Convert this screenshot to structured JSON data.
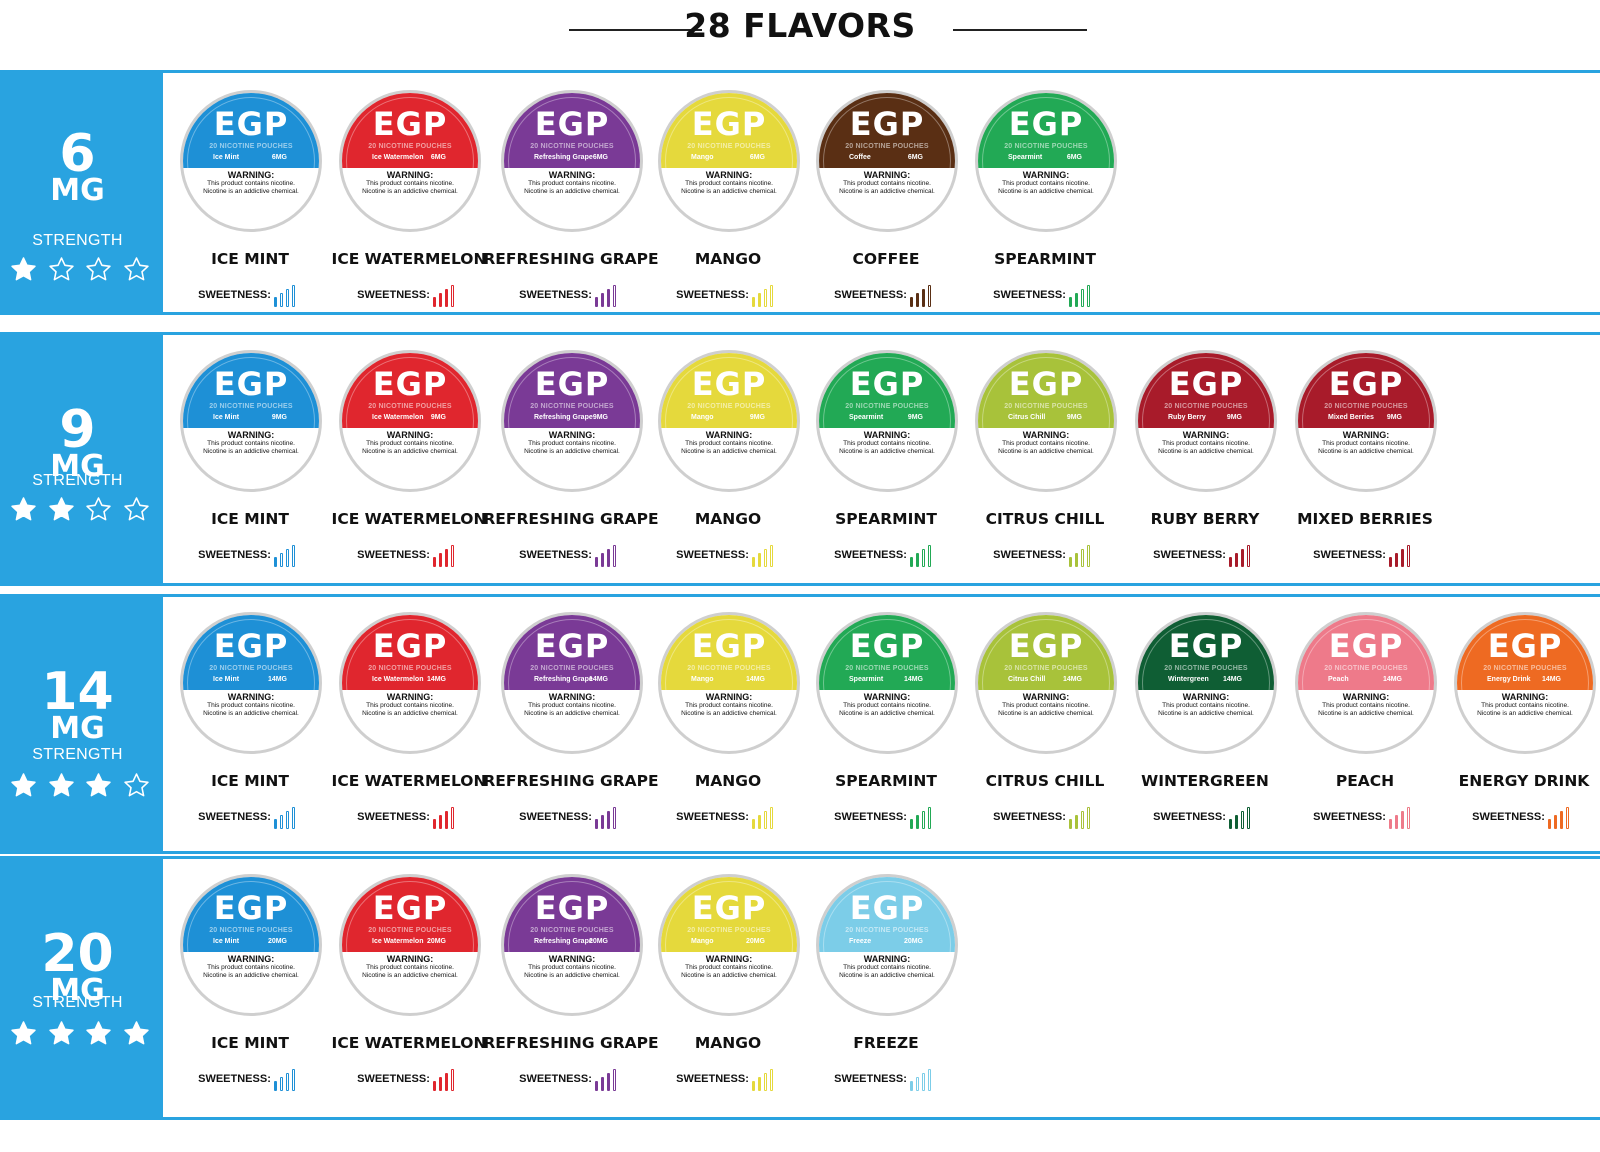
{
  "header": {
    "title": "28 FLAVORS"
  },
  "brand": "EGP",
  "tin_subtitle": "20 NICOTINE POUCHES",
  "warning": {
    "title": "WARNING:",
    "text": "This product contains nicotine. Nicotine is an addictive chemical."
  },
  "sweetness_label": "SWEETNESS:",
  "strength_label": "STRENGTH",
  "colors": {
    "accent": "#29a3e0",
    "ice_mint": "#1e90d6",
    "ice_watermelon": "#e0262e",
    "refreshing_grape": "#7a3a96",
    "mango": "#e5d93c",
    "coffee": "#5a2f14",
    "spearmint": "#22a955",
    "citrus_chill": "#a8c23a",
    "ruby_berry": "#a81b2a",
    "mixed_berries": "#a81b2a",
    "wintergreen": "#0f5e34",
    "peach": "#ee7a8a",
    "energy_drink": "#ee6a22",
    "freeze": "#7ccde8"
  },
  "tiers": [
    {
      "number": "6",
      "unit": "MG",
      "stars": 1,
      "products": [
        {
          "name": "ICE MINT",
          "tin_label": "Ice Mint",
          "mg": "6MG",
          "color_key": "ice_mint",
          "sweetness": 1
        },
        {
          "name": "ICE WATERMELON",
          "tin_label": "Ice Watermelon",
          "mg": "6MG",
          "color_key": "ice_watermelon",
          "sweetness": 3
        },
        {
          "name": "REFRESHING GRAPE",
          "tin_label": "Refreshing Grape",
          "mg": "6MG",
          "color_key": "refreshing_grape",
          "sweetness": 3
        },
        {
          "name": "MANGO",
          "tin_label": "Mango",
          "mg": "6MG",
          "color_key": "mango",
          "sweetness": 2
        },
        {
          "name": "COFFEE",
          "tin_label": "Coffee",
          "mg": "6MG",
          "color_key": "coffee",
          "sweetness": 3
        },
        {
          "name": "SPEARMINT",
          "tin_label": "Spearmint",
          "mg": "6MG",
          "color_key": "spearmint",
          "sweetness": 2
        }
      ]
    },
    {
      "number": "9",
      "unit": "MG",
      "stars": 2,
      "products": [
        {
          "name": "ICE MINT",
          "tin_label": "Ice Mint",
          "mg": "9MG",
          "color_key": "ice_mint",
          "sweetness": 1
        },
        {
          "name": "ICE WATERMELON",
          "tin_label": "Ice Watermelon",
          "mg": "9MG",
          "color_key": "ice_watermelon",
          "sweetness": 3
        },
        {
          "name": "REFRESHING GRAPE",
          "tin_label": "Refreshing Grape",
          "mg": "9MG",
          "color_key": "refreshing_grape",
          "sweetness": 3
        },
        {
          "name": "MANGO",
          "tin_label": "Mango",
          "mg": "9MG",
          "color_key": "mango",
          "sweetness": 2
        },
        {
          "name": "SPEARMINT",
          "tin_label": "Spearmint",
          "mg": "9MG",
          "color_key": "spearmint",
          "sweetness": 2
        },
        {
          "name": "CITRUS CHILL",
          "tin_label": "Citrus Chill",
          "mg": "9MG",
          "color_key": "citrus_chill",
          "sweetness": 2
        },
        {
          "name": "RUBY BERRY",
          "tin_label": "Ruby Berry",
          "mg": "9MG",
          "color_key": "ruby_berry",
          "sweetness": 3
        },
        {
          "name": "MIXED BERRIES",
          "tin_label": "Mixed Berries",
          "mg": "9MG",
          "color_key": "mixed_berries",
          "sweetness": 3
        }
      ]
    },
    {
      "number": "14",
      "unit": "MG",
      "stars": 3,
      "products": [
        {
          "name": "ICE MINT",
          "tin_label": "Ice Mint",
          "mg": "14MG",
          "color_key": "ice_mint",
          "sweetness": 1
        },
        {
          "name": "ICE WATERMELON",
          "tin_label": "Ice Watermelon",
          "mg": "14MG",
          "color_key": "ice_watermelon",
          "sweetness": 3
        },
        {
          "name": "REFRESHING GRAPE",
          "tin_label": "Refreshing Grape",
          "mg": "14MG",
          "color_key": "refreshing_grape",
          "sweetness": 3
        },
        {
          "name": "MANGO",
          "tin_label": "Mango",
          "mg": "14MG",
          "color_key": "mango",
          "sweetness": 2
        },
        {
          "name": "SPEARMINT",
          "tin_label": "Spearmint",
          "mg": "14MG",
          "color_key": "spearmint",
          "sweetness": 2
        },
        {
          "name": "CITRUS CHILL",
          "tin_label": "Citrus Chill",
          "mg": "14MG",
          "color_key": "citrus_chill",
          "sweetness": 2
        },
        {
          "name": "WINTERGREEN",
          "tin_label": "Wintergreen",
          "mg": "14MG",
          "color_key": "wintergreen",
          "sweetness": 2
        },
        {
          "name": "PEACH",
          "tin_label": "Peach",
          "mg": "14MG",
          "color_key": "peach",
          "sweetness": 3
        },
        {
          "name": "ENERGY DRINK",
          "tin_label": "Energy Drink",
          "mg": "14MG",
          "color_key": "energy_drink",
          "sweetness": 3
        }
      ]
    },
    {
      "number": "20",
      "unit": "MG",
      "stars": 4,
      "products": [
        {
          "name": "ICE MINT",
          "tin_label": "Ice Mint",
          "mg": "20MG",
          "color_key": "ice_mint",
          "sweetness": 1
        },
        {
          "name": "ICE WATERMELON",
          "tin_label": "Ice Watermelon",
          "mg": "20MG",
          "color_key": "ice_watermelon",
          "sweetness": 3
        },
        {
          "name": "REFRESHING GRAPE",
          "tin_label": "Refreshing Grape",
          "mg": "20MG",
          "color_key": "refreshing_grape",
          "sweetness": 3
        },
        {
          "name": "MANGO",
          "tin_label": "Mango",
          "mg": "20MG",
          "color_key": "mango",
          "sweetness": 2
        },
        {
          "name": "FREEZE",
          "tin_label": "Freeze",
          "mg": "20MG",
          "color_key": "freeze",
          "sweetness": 1
        }
      ]
    }
  ]
}
